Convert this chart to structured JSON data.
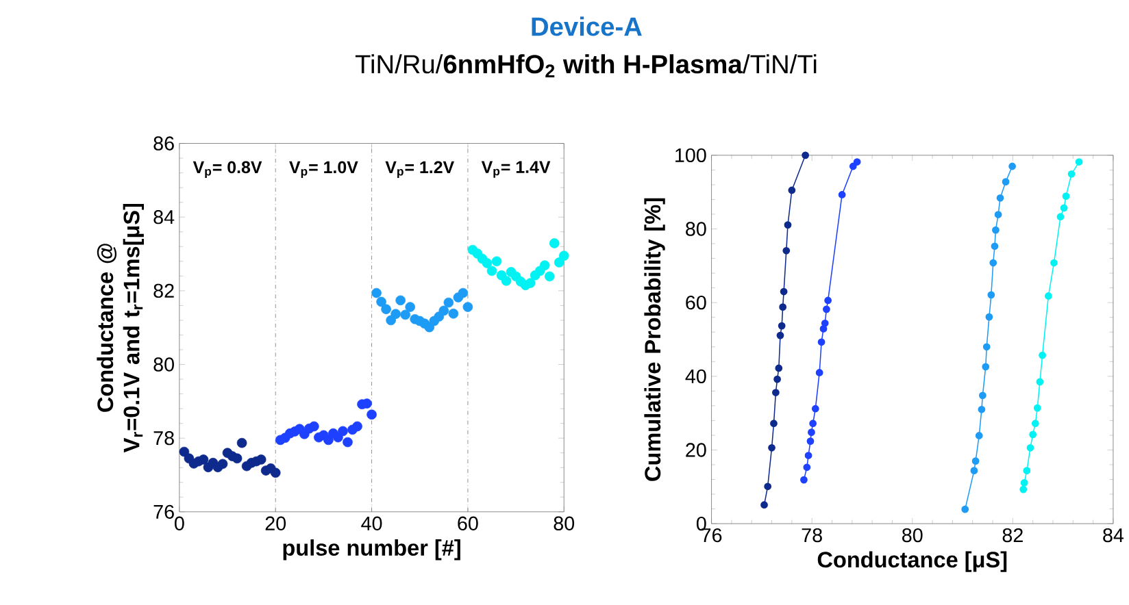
{
  "chart_data": [
    {
      "type": "other",
      "title": "Device-A",
      "subtitle": "TiN/Ru/**6nmHfO$_{2}$ with H-Plasma**/TiN/Ti"
    },
    {
      "type": "scatter",
      "xlabel": "pulse number [#]",
      "ylabel": "Conductance @ V$_{r}$=0.1V and t$_{r}$=1ms[μS]",
      "xlim": [
        0,
        80
      ],
      "ylim": [
        76,
        86
      ],
      "xticks": [
        0,
        20,
        40,
        60,
        80
      ],
      "yticks": [
        76,
        78,
        80,
        82,
        84,
        86
      ],
      "marker": "circle",
      "grid": false,
      "series": [
        {
          "color": "#0d2a8c",
          "x": [
            1,
            2,
            3,
            4,
            5,
            6,
            7,
            8,
            9,
            10,
            11,
            12,
            13,
            14,
            15,
            16,
            17,
            18,
            19,
            20
          ],
          "values": [
            77.63,
            77.45,
            77.31,
            77.37,
            77.42,
            77.21,
            77.33,
            77.21,
            77.3,
            77.6,
            77.51,
            77.45,
            77.87,
            77.24,
            77.33,
            77.37,
            77.42,
            77.12,
            77.18,
            77.06
          ]
        },
        {
          "color": "#1e40ff",
          "x": [
            21,
            22,
            23,
            24,
            25,
            26,
            27,
            28,
            29,
            30,
            31,
            32,
            33,
            34,
            35,
            36,
            37,
            38,
            39,
            40
          ],
          "values": [
            77.95,
            78.01,
            78.13,
            78.18,
            78.25,
            78.11,
            78.26,
            78.32,
            78.02,
            78.08,
            77.95,
            78.13,
            78.02,
            78.19,
            77.89,
            78.23,
            78.32,
            78.92,
            78.94,
            78.64
          ]
        },
        {
          "color": "#1e9bf5",
          "x": [
            41,
            42,
            43,
            44,
            45,
            46,
            47,
            48,
            49,
            50,
            51,
            52,
            53,
            54,
            55,
            56,
            57,
            58,
            59,
            60
          ],
          "values": [
            81.94,
            81.7,
            81.5,
            81.2,
            81.37,
            81.74,
            81.35,
            81.56,
            81.23,
            81.18,
            81.11,
            81.01,
            81.18,
            81.3,
            81.46,
            81.68,
            81.38,
            81.82,
            81.94,
            81.56
          ]
        },
        {
          "color": "#00f2f2",
          "x": [
            61,
            62,
            63,
            64,
            65,
            66,
            67,
            68,
            69,
            70,
            71,
            72,
            73,
            74,
            75,
            76,
            77,
            78,
            79,
            80
          ],
          "values": [
            83.11,
            83.01,
            82.87,
            82.75,
            82.54,
            82.8,
            82.42,
            82.27,
            82.51,
            82.39,
            82.25,
            82.15,
            82.21,
            82.42,
            82.54,
            82.69,
            82.39,
            83.29,
            82.77,
            82.95
          ]
        }
      ],
      "ref_lines": [
        {
          "axis": "x",
          "value": 20,
          "color": "#707070",
          "line_style": "dashed"
        },
        {
          "axis": "x",
          "value": 40,
          "color": "#707070",
          "line_style": "dashed"
        },
        {
          "axis": "x",
          "value": 60,
          "color": "#707070",
          "line_style": "dashed"
        }
      ],
      "annotations": [
        "V$_{p}$= 0.8V",
        "V$_{p}$= 1.0V",
        "V$_{p}$= 1.2V",
        "V$_{p}$= 1.4V"
      ]
    },
    {
      "type": "line",
      "xlabel": "Conductance [μS]",
      "ylabel": "Cumulative Probability [%]",
      "xlim": [
        76,
        84
      ],
      "ylim": [
        0,
        100
      ],
      "xticks": [
        76,
        78,
        80,
        82,
        84
      ],
      "yticks": [
        0,
        20,
        40,
        60,
        80,
        100
      ],
      "marker": "circle",
      "line_style": "solid",
      "grid": false,
      "series": [
        {
          "color": "#0d2a8c",
          "x": [
            77.05,
            77.12,
            77.2,
            77.24,
            77.28,
            77.31,
            77.34,
            77.37,
            77.4,
            77.42,
            77.44,
            77.49,
            77.52,
            77.6,
            77.87
          ],
          "values": [
            5.1,
            10.1,
            20.6,
            27.2,
            35.6,
            39.2,
            42.2,
            51.1,
            53.7,
            58.8,
            63.0,
            74.1,
            81.1,
            90.5,
            100
          ]
        },
        {
          "color": "#1e40ff",
          "x": [
            77.84,
            77.9,
            77.93,
            77.97,
            77.99,
            78.02,
            78.07,
            78.15,
            78.19,
            78.23,
            78.26,
            78.29,
            78.32,
            78.6,
            78.82,
            78.9
          ],
          "values": [
            11.9,
            15.3,
            18.5,
            22.4,
            24.8,
            27.2,
            31.2,
            41.0,
            49.3,
            52.9,
            54.4,
            58.2,
            60.6,
            89.3,
            97.0,
            98.2
          ]
        },
        {
          "color": "#1e9bf5",
          "x": [
            81.05,
            81.23,
            81.26,
            81.33,
            81.38,
            81.4,
            81.46,
            81.48,
            81.53,
            81.57,
            81.61,
            81.64,
            81.66,
            81.71,
            81.75,
            81.86,
            81.99
          ],
          "values": [
            3.9,
            14.4,
            17.0,
            23.9,
            31.0,
            34.8,
            42.6,
            48.0,
            56.1,
            62.1,
            70.8,
            75.3,
            79.7,
            83.9,
            88.4,
            92.8,
            97.0
          ]
        },
        {
          "color": "#00f2f2",
          "x": [
            82.21,
            82.23,
            82.28,
            82.35,
            82.4,
            82.45,
            82.49,
            82.54,
            82.59,
            82.71,
            82.82,
            82.95,
            83.02,
            83.06,
            83.17,
            83.32
          ],
          "values": [
            9.3,
            11.1,
            14.4,
            20.6,
            24.2,
            27.2,
            31.4,
            38.5,
            45.7,
            61.8,
            70.8,
            83.3,
            85.7,
            88.9,
            94.9,
            98.2
          ]
        }
      ]
    }
  ]
}
